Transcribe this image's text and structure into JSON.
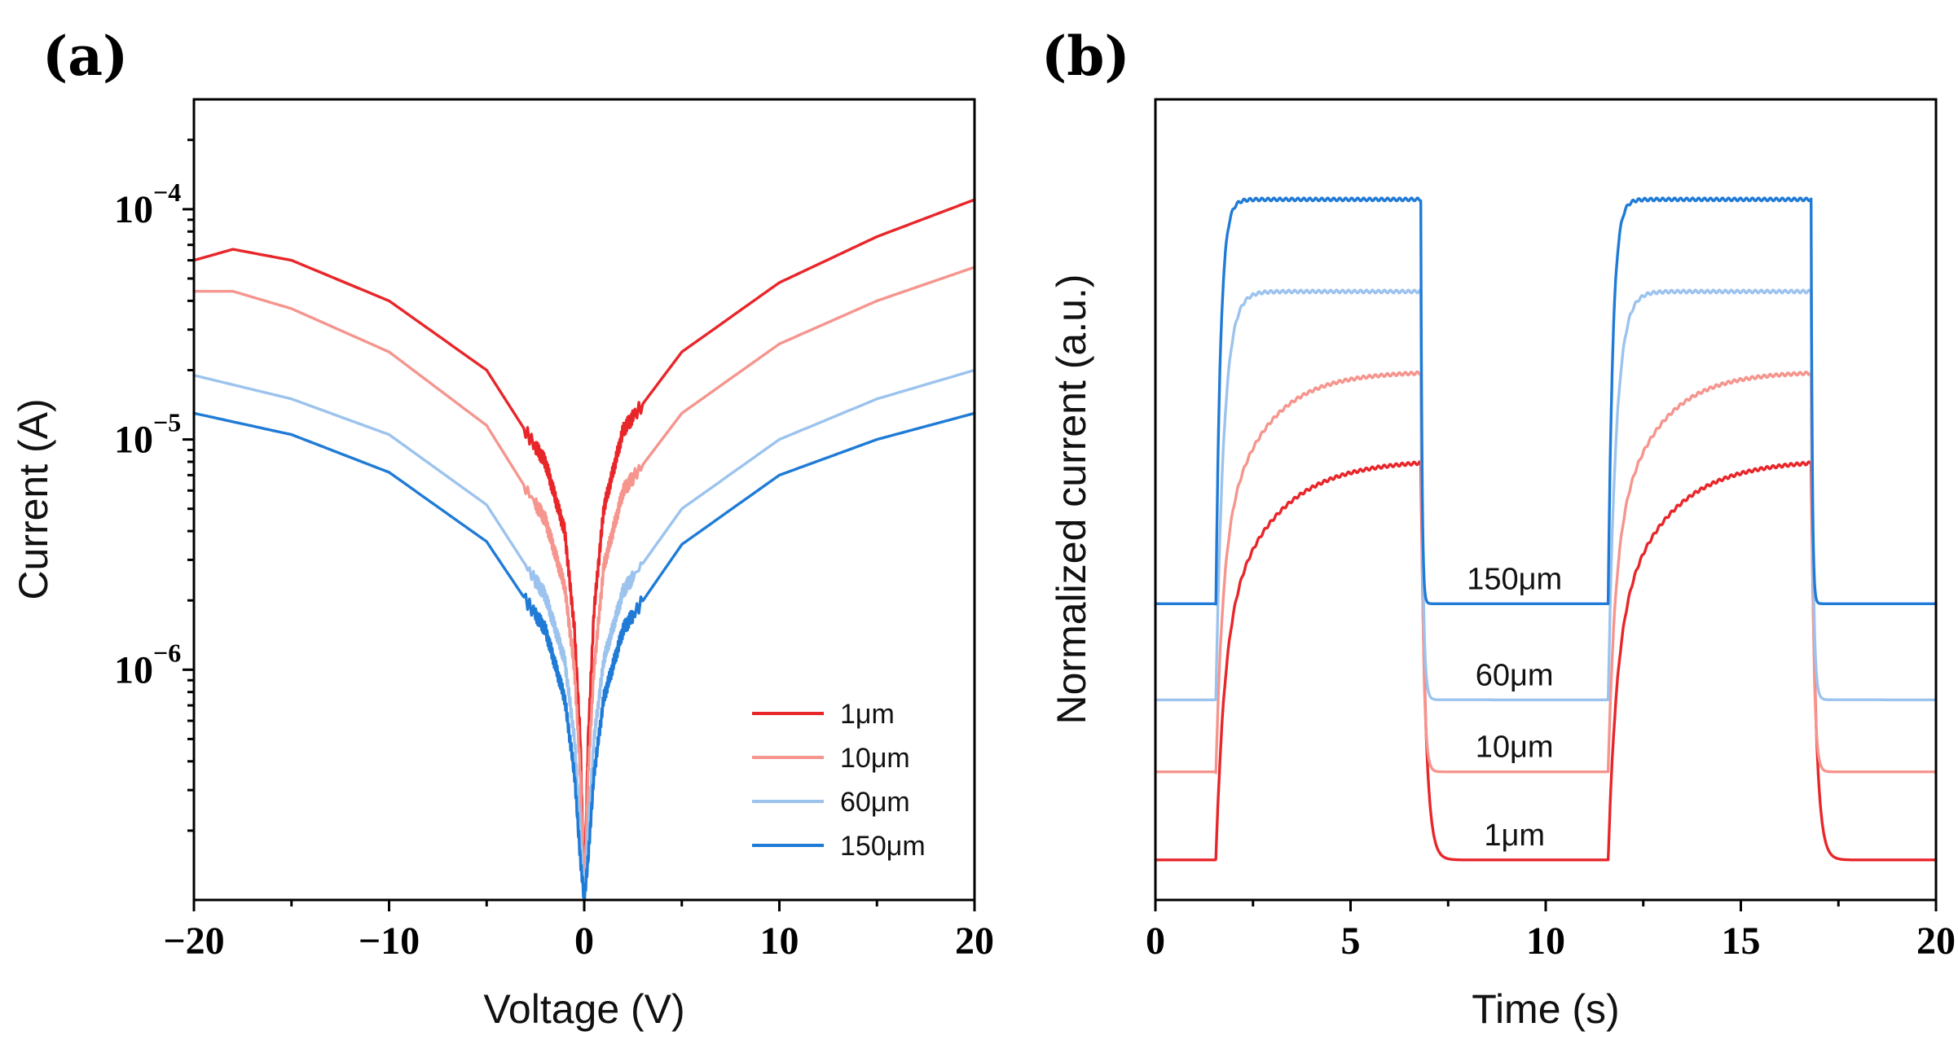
{
  "chart_data": [
    {
      "panel_label": "(a)",
      "type": "line",
      "xlabel": "Voltage (V)",
      "ylabel": "Current (A)",
      "xlim": [
        -20,
        20
      ],
      "xticks": [
        -20,
        -10,
        0,
        10,
        20
      ],
      "xtick_labels": [
        "−20",
        "−10",
        "0",
        "10",
        "20"
      ],
      "yscale": "log",
      "ylim": [
        1e-07,
        0.0003
      ],
      "yticks": [
        1e-06,
        1e-05,
        0.0001
      ],
      "ytick_labels": [
        {
          "base": "10",
          "exp": "−6"
        },
        {
          "base": "10",
          "exp": "−5"
        },
        {
          "base": "10",
          "exp": "−4"
        }
      ],
      "legend_position": "bottom-right",
      "grid": false,
      "series": [
        {
          "name": "1μm",
          "color": "#e8262a",
          "x": [
            -20,
            -18,
            -15,
            -10,
            -5,
            -2,
            -1,
            -0.5,
            -0.2,
            0,
            0.2,
            0.5,
            1,
            2,
            5,
            10,
            15,
            20
          ],
          "y": [
            6e-05,
            6.7e-05,
            6e-05,
            4e-05,
            2e-05,
            8e-06,
            4e-06,
            1.5e-06,
            5e-07,
            1e-07,
            5e-07,
            1.8e-06,
            5e-06,
            1.1e-05,
            2.4e-05,
            4.8e-05,
            7.6e-05,
            0.00011
          ]
        },
        {
          "name": "10μm",
          "color": "#f5958e",
          "x": [
            -20,
            -18,
            -15,
            -10,
            -5,
            -2,
            -1,
            -0.5,
            -0.2,
            0,
            0.2,
            0.5,
            1,
            2,
            5,
            10,
            15,
            20
          ],
          "y": [
            4.4e-05,
            4.4e-05,
            3.7e-05,
            2.4e-05,
            1.15e-05,
            4.5e-06,
            2.3e-06,
            1e-06,
            3.5e-07,
            1e-07,
            3.5e-07,
            1e-06,
            2.8e-06,
            6e-06,
            1.3e-05,
            2.6e-05,
            4e-05,
            5.6e-05
          ]
        },
        {
          "name": "60μm",
          "color": "#9cc3ee",
          "x": [
            -20,
            -15,
            -10,
            -5,
            -2,
            -1,
            -0.5,
            -0.2,
            0,
            0.2,
            0.5,
            1,
            2,
            5,
            10,
            15,
            20
          ],
          "y": [
            1.9e-05,
            1.5e-05,
            1.05e-05,
            5.2e-06,
            2.1e-06,
            1.1e-06,
            5e-07,
            2e-07,
            1e-07,
            2e-07,
            5e-07,
            1.1e-06,
            2.2e-06,
            5e-06,
            1e-05,
            1.5e-05,
            2e-05
          ]
        },
        {
          "name": "150μm",
          "color": "#1f7bd6",
          "x": [
            -20,
            -15,
            -10,
            -5,
            -2,
            -1,
            -0.5,
            -0.2,
            0,
            0.2,
            0.5,
            1,
            2,
            5,
            10,
            15,
            20
          ],
          "y": [
            1.3e-05,
            1.05e-05,
            7.2e-06,
            3.6e-06,
            1.5e-06,
            7.5e-07,
            3.5e-07,
            1.5e-07,
            1e-07,
            1.5e-07,
            3.5e-07,
            7.5e-07,
            1.5e-06,
            3.5e-06,
            7e-06,
            1e-05,
            1.3e-05
          ]
        }
      ]
    },
    {
      "panel_label": "(b)",
      "type": "line",
      "xlabel": "Time (s)",
      "ylabel": "Normalized current (a.u.)",
      "xlim": [
        0,
        20
      ],
      "xticks": [
        0,
        5,
        10,
        15,
        20
      ],
      "xtick_labels": [
        "0",
        "5",
        "10",
        "15",
        "20"
      ],
      "ylim": [
        0,
        1
      ],
      "yticks_shown": false,
      "grid": false,
      "on_intervals": [
        [
          1.55,
          6.8
        ],
        [
          11.6,
          16.8
        ]
      ],
      "series": [
        {
          "name": "1μm",
          "color": "#e8262a",
          "off": 0.05,
          "on": 0.55,
          "rise_tau": 0.6,
          "fall_tau": 0.12
        },
        {
          "name": "10μm",
          "color": "#f5958e",
          "off": 0.16,
          "on": 0.66,
          "rise_tau": 0.5,
          "fall_tau": 0.06
        },
        {
          "name": "60μm",
          "color": "#9cc3ee",
          "off": 0.25,
          "on": 0.76,
          "rise_tau": 0.2,
          "fall_tau": 0.05
        },
        {
          "name": "150μm",
          "color": "#1f7bd6",
          "off": 0.37,
          "on": 0.875,
          "rise_tau": 0.12,
          "fall_tau": 0.03
        }
      ]
    }
  ]
}
